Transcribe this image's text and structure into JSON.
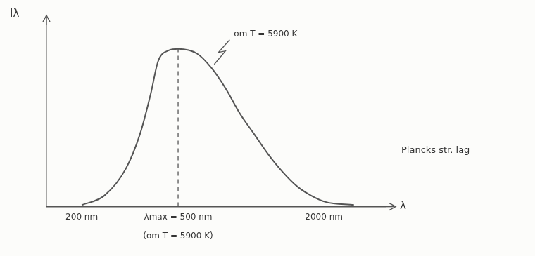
{
  "chart_data": {
    "type": "line",
    "y_label": "Iλ",
    "x_label": "λ",
    "x": [
      200,
      248,
      304,
      348,
      386,
      413,
      457,
      500,
      599,
      686,
      785,
      900,
      1030,
      1180,
      1350,
      1546,
      1770,
      2030,
      2660
    ],
    "values": [
      1,
      7,
      24,
      46,
      72,
      92,
      99,
      100,
      97,
      88,
      75,
      59,
      46,
      33,
      22,
      13,
      7,
      3,
      1
    ],
    "color": "#555555",
    "line_style": "solid",
    "marker": "none",
    "log": "x",
    "xlim": [
      143,
      3600
    ],
    "ylim": [
      0,
      115
    ],
    "xticks": [
      {
        "value": 200,
        "label": "200 nm"
      },
      {
        "value": 500,
        "label": "λmax = 500 nm"
      },
      {
        "value": 2000,
        "label": "2000 nm"
      }
    ],
    "yticks": [],
    "grid": false,
    "tick_labels": "x",
    "marker_line": {
      "x": 500,
      "line_style": "dashed"
    },
    "curve_label": "om T = 5900 K",
    "tick_note": "(om T = 5900 K)",
    "side_note": "Plancks str. lag"
  }
}
